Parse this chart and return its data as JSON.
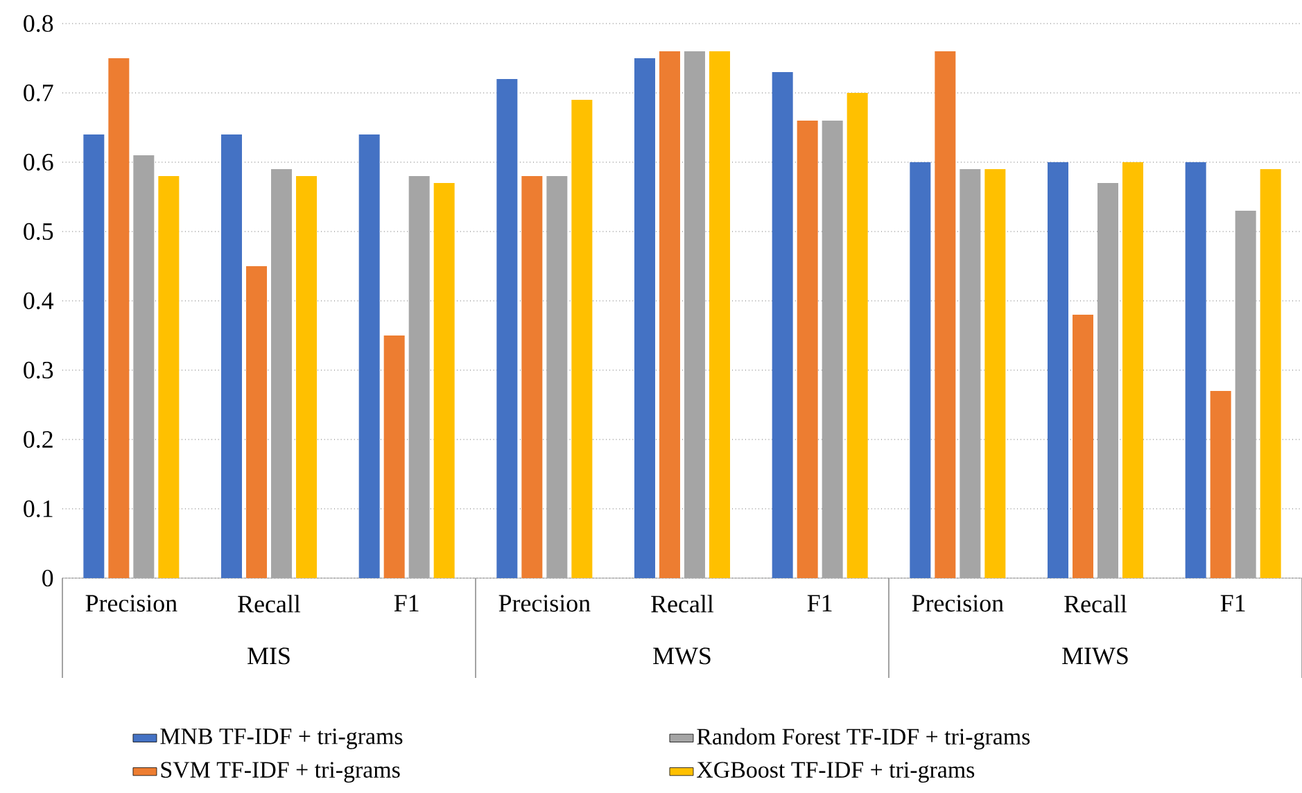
{
  "chart_data": {
    "type": "bar",
    "categories": [
      "Precision",
      "Recall",
      "F1",
      "Precision",
      "Recall",
      "F1",
      "Precision",
      "Recall",
      "F1"
    ],
    "annotations": [
      "MIS",
      "MWS",
      "MIWS"
    ],
    "series": [
      {
        "name": "MNB TF-IDF + tri-grams",
        "color": "#4472c4",
        "values": [
          0.64,
          0.64,
          0.64,
          0.72,
          0.75,
          0.73,
          0.6,
          0.6,
          0.6
        ]
      },
      {
        "name": "SVM TF-IDF + tri-grams",
        "color": "#ed7d31",
        "values": [
          0.75,
          0.45,
          0.35,
          0.58,
          0.76,
          0.66,
          0.76,
          0.38,
          0.27
        ]
      },
      {
        "name": "Random Forest TF-IDF + tri-grams",
        "color": "#a5a5a5",
        "values": [
          0.61,
          0.59,
          0.58,
          0.58,
          0.76,
          0.66,
          0.59,
          0.57,
          0.53
        ]
      },
      {
        "name": "XGBoost TF-IDF + tri-grams",
        "color": "#ffc000",
        "values": [
          0.58,
          0.58,
          0.57,
          0.69,
          0.76,
          0.7,
          0.59,
          0.6,
          0.59
        ]
      }
    ],
    "ylim": [
      0,
      0.8
    ],
    "yticks": [
      0,
      0.1,
      0.2,
      0.3,
      0.4,
      0.5,
      0.6,
      0.7,
      0.8
    ],
    "grid": "y",
    "legend": "bottom"
  }
}
